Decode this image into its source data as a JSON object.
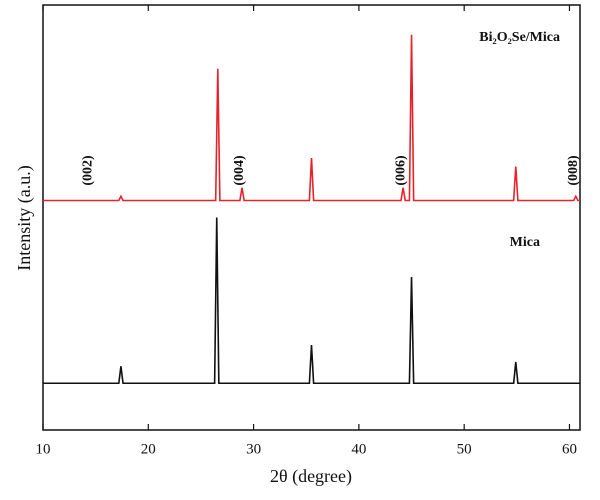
{
  "chart_data": {
    "type": "line",
    "x_label": "2θ (degree)",
    "y_label": "Intensity (a.u.)",
    "xlim": [
      10,
      61
    ],
    "xticks": [
      10,
      20,
      30,
      40,
      50,
      60
    ],
    "ylim": [
      0,
      100
    ],
    "series": [
      {
        "name": "Bi₂O₂Se/Mica",
        "color": "#e8222a",
        "x": [
          10,
          17.2,
          17.4,
          17.6,
          26.4,
          26.6,
          26.8,
          28.7,
          28.9,
          29.1,
          35.3,
          35.5,
          35.7,
          44.0,
          44.2,
          44.4,
          44.8,
          45.0,
          45.2,
          54.7,
          54.9,
          55.1,
          60.4,
          60.6,
          60.8,
          61
        ],
        "values": [
          54,
          54,
          55,
          54,
          54,
          85,
          54,
          54,
          57,
          54,
          54,
          64,
          54,
          54,
          57,
          54,
          54,
          93,
          54,
          54,
          62,
          54,
          54,
          55,
          54,
          54
        ]
      },
      {
        "name": "Mica",
        "color": "#111111",
        "x": [
          10,
          17.2,
          17.4,
          17.6,
          26.3,
          26.5,
          26.7,
          35.3,
          35.5,
          35.7,
          44.8,
          45.0,
          45.2,
          54.7,
          54.9,
          55.1,
          61
        ],
        "values": [
          11,
          11,
          15,
          11,
          11,
          50,
          11,
          11,
          20,
          11,
          11,
          36,
          11,
          11,
          16,
          11,
          11
        ]
      }
    ],
    "annotations": [
      {
        "text": "(002)",
        "x": 14.5
      },
      {
        "text": "(004)",
        "x": 28.9
      },
      {
        "text": "(006)",
        "x": 44.2
      },
      {
        "text": "(008)",
        "x": 60.6
      }
    ]
  }
}
